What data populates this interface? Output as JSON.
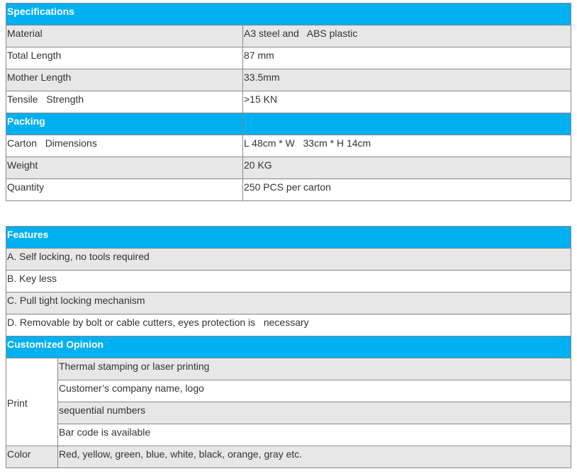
{
  "specifications": {
    "title": "Specifications",
    "rows": [
      {
        "label": "Material",
        "value": "A3 steel and   ABS plastic"
      },
      {
        "label": "Total Length",
        "value": "87 mm"
      },
      {
        "label": "Mother Length",
        "value": "33.5mm"
      },
      {
        "label": "Tensile   Strength",
        "value": ">15 KN"
      }
    ]
  },
  "packing": {
    "title": "Packing",
    "rows": [
      {
        "label": "Carton   Dimensions",
        "value": "L 48cm * W   33cm * H 14cm"
      },
      {
        "label": "Weight",
        "value": "20 KG"
      },
      {
        "label": "Quantity",
        "value": "250 PCS per carton"
      }
    ]
  },
  "features": {
    "title": "Features",
    "items": [
      "A. Self locking, no tools required",
      "B. Key less",
      "C. Pull tight locking mechanism",
      "D. Removable by bolt or cable cutters, eyes protection is   necessary"
    ]
  },
  "customized": {
    "title": "Customized Opinion",
    "print_label": "Print",
    "print_items": [
      "Thermal stamping or laser printing",
      "Customer’s company name, logo",
      "sequential numbers",
      "Bar code is available"
    ],
    "color_label": "Color",
    "color_value": "Red, yellow, green, blue, white, black, orange, gray etc."
  },
  "colors": {
    "header": "#00b0f0",
    "stripe": "#e7e7e7"
  }
}
